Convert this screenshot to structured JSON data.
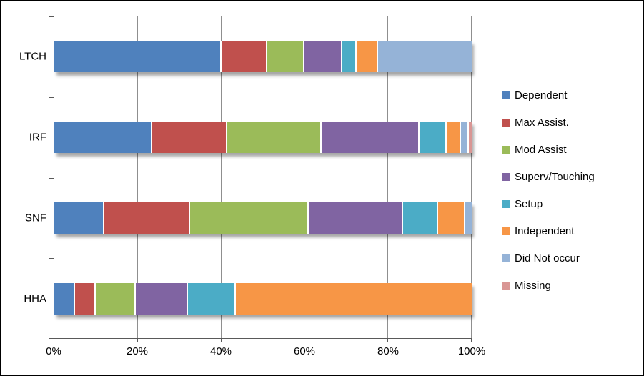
{
  "chart": {
    "background": "#ffffff",
    "frame_border_color": "#000000",
    "axis_color": "#595959",
    "gridline_color": "#8f8f8f"
  },
  "chart_data": {
    "type": "bar",
    "stacked": true,
    "orientation": "horizontal",
    "title": "",
    "xlabel": "",
    "ylabel": "",
    "categories": [
      "LTCH",
      "IRF",
      "SNF",
      "HHA"
    ],
    "series": [
      {
        "name": "Dependent",
        "color": "#4F81BD",
        "values": [
          40,
          23.5,
          12,
          5
        ]
      },
      {
        "name": "Max Assist.",
        "color": "#C0504D",
        "values": [
          11,
          18,
          20.5,
          5
        ]
      },
      {
        "name": "Mod Assist",
        "color": "#9BBB59",
        "values": [
          9,
          22.5,
          28.5,
          9.5
        ]
      },
      {
        "name": "Superv/Touching",
        "color": "#8064A2",
        "values": [
          9,
          23.5,
          22.5,
          12.5
        ]
      },
      {
        "name": "Setup",
        "color": "#4BACC6",
        "values": [
          3.5,
          6.5,
          8.5,
          11.5
        ]
      },
      {
        "name": "Independent",
        "color": "#F79646",
        "values": [
          5,
          3.5,
          6.5,
          56.5
        ]
      },
      {
        "name": "Did Not occur",
        "color": "#95B3D7",
        "values": [
          22.5,
          1.8,
          1.5,
          0
        ]
      },
      {
        "name": "Missing",
        "color": "#D99694",
        "values": [
          0,
          0.7,
          0,
          0
        ]
      }
    ],
    "x_ticks": [
      "0%",
      "20%",
      "40%",
      "60%",
      "80%",
      "100%"
    ],
    "xlim": [
      0,
      100
    ],
    "grid": true,
    "legend_position": "right"
  }
}
